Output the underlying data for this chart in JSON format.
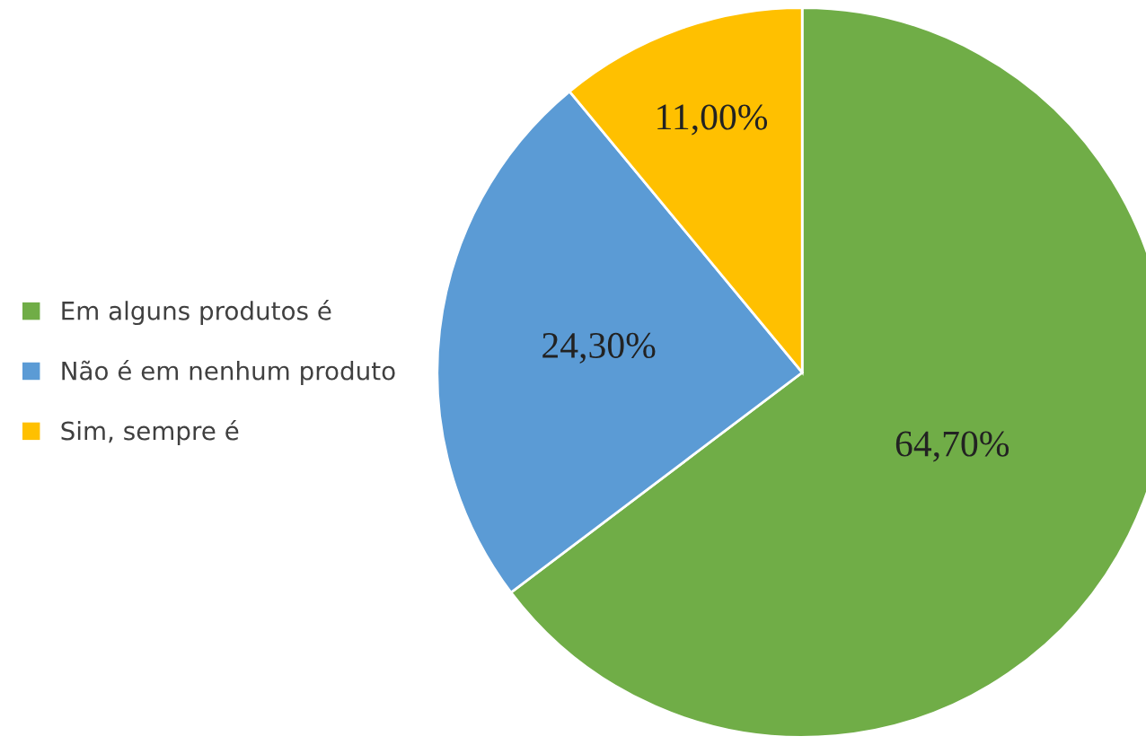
{
  "chart_data": {
    "type": "pie",
    "categories": [
      "Em alguns produtos é",
      "Não é em nenhum produto",
      "Sim, sempre é"
    ],
    "values": [
      64.7,
      24.3,
      11.0
    ],
    "colors": [
      "#70ad47",
      "#5b9bd5",
      "#ffc000"
    ],
    "value_labels": [
      "64,70%",
      "24,30%",
      "11,00%"
    ],
    "legend": "left"
  }
}
